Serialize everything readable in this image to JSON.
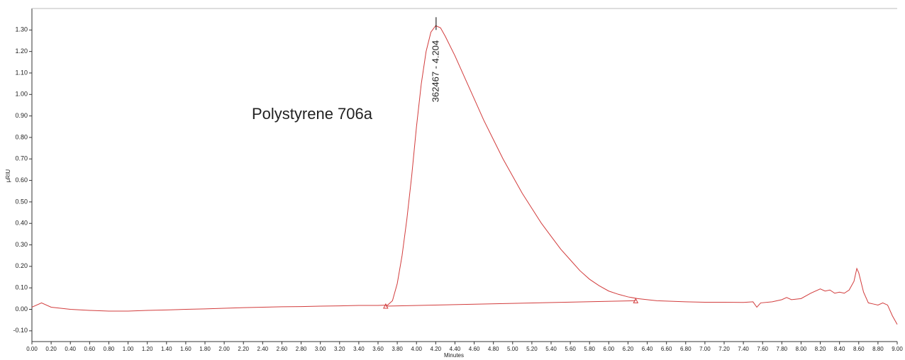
{
  "chart_data": {
    "type": "line",
    "x_label": "Minutes",
    "y_label": "µRIU",
    "annotation": "Polystyrene 706a",
    "peak": {
      "label": "362467 - 4.204",
      "x": 4.204,
      "y": 1.32
    },
    "baseline": {
      "x": [
        3.68,
        6.28
      ],
      "y": [
        0.015,
        0.04
      ]
    },
    "series": [
      {
        "color": "#d23c3c",
        "x": [
          0.0,
          0.1,
          0.2,
          0.4,
          0.6,
          0.8,
          1.0,
          1.2,
          1.4,
          1.6,
          1.8,
          2.0,
          2.2,
          2.4,
          2.6,
          2.8,
          3.0,
          3.2,
          3.4,
          3.6,
          3.7,
          3.75,
          3.8,
          3.85,
          3.9,
          3.95,
          4.0,
          4.05,
          4.1,
          4.15,
          4.2,
          4.25,
          4.3,
          4.4,
          4.5,
          4.6,
          4.7,
          4.8,
          4.9,
          5.0,
          5.1,
          5.2,
          5.3,
          5.4,
          5.5,
          5.6,
          5.7,
          5.8,
          5.9,
          6.0,
          6.1,
          6.2,
          6.3,
          6.5,
          6.8,
          7.0,
          7.2,
          7.4,
          7.5,
          7.54,
          7.58,
          7.7,
          7.8,
          7.85,
          7.9,
          8.0,
          8.1,
          8.2,
          8.25,
          8.3,
          8.35,
          8.4,
          8.45,
          8.5,
          8.55,
          8.58,
          8.6,
          8.65,
          8.7,
          8.75,
          8.8,
          8.85,
          8.9,
          8.95,
          9.0
        ],
        "values": [
          0.01,
          0.03,
          0.01,
          0.0,
          -0.005,
          -0.008,
          -0.008,
          -0.005,
          -0.003,
          0.0,
          0.002,
          0.005,
          0.008,
          0.01,
          0.012,
          0.013,
          0.015,
          0.016,
          0.018,
          0.018,
          0.02,
          0.04,
          0.12,
          0.25,
          0.42,
          0.62,
          0.85,
          1.05,
          1.2,
          1.29,
          1.32,
          1.31,
          1.27,
          1.18,
          1.08,
          0.98,
          0.88,
          0.79,
          0.7,
          0.62,
          0.54,
          0.47,
          0.4,
          0.34,
          0.28,
          0.23,
          0.18,
          0.14,
          0.11,
          0.085,
          0.07,
          0.058,
          0.05,
          0.04,
          0.035,
          0.033,
          0.033,
          0.032,
          0.035,
          0.01,
          0.03,
          0.035,
          0.045,
          0.055,
          0.045,
          0.05,
          0.075,
          0.095,
          0.085,
          0.09,
          0.075,
          0.08,
          0.075,
          0.09,
          0.13,
          0.19,
          0.17,
          0.08,
          0.03,
          0.025,
          0.02,
          0.03,
          0.02,
          -0.03,
          -0.07
        ]
      }
    ],
    "xlim": [
      0,
      9
    ],
    "ylim": [
      -0.15,
      1.4
    ],
    "yticks": [
      {
        "value": -0.1,
        "label": "-0.10"
      },
      {
        "value": 0,
        "label": "0.00"
      },
      {
        "value": 0.1,
        "label": "0.10"
      },
      {
        "value": 0.2,
        "label": "0.20"
      },
      {
        "value": 0.3,
        "label": "0.30"
      },
      {
        "value": 0.4,
        "label": "0.40"
      },
      {
        "value": 0.5,
        "label": "0.50"
      },
      {
        "value": 0.6,
        "label": "0.60"
      },
      {
        "value": 0.7,
        "label": "0.70"
      },
      {
        "value": 0.8,
        "label": "0.80"
      },
      {
        "value": 0.9,
        "label": "0.90"
      },
      {
        "value": 1.0,
        "label": "1.00"
      },
      {
        "value": 1.1,
        "label": "1.10"
      },
      {
        "value": 1.2,
        "label": "1.20"
      },
      {
        "value": 1.3,
        "label": "1.30"
      }
    ],
    "xticks": [
      {
        "value": 0,
        "label": "0.00"
      },
      {
        "value": 0.2,
        "label": "0.20"
      },
      {
        "value": 0.4,
        "label": "0.40"
      },
      {
        "value": 0.6,
        "label": "0.60"
      },
      {
        "value": 0.8,
        "label": "0.80"
      },
      {
        "value": 1.0,
        "label": "1.00"
      },
      {
        "value": 1.2,
        "label": "1.20"
      },
      {
        "value": 1.4,
        "label": "1.40"
      },
      {
        "value": 1.6,
        "label": "1.60"
      },
      {
        "value": 1.8,
        "label": "1.80"
      },
      {
        "value": 2.0,
        "label": "2.00"
      },
      {
        "value": 2.2,
        "label": "2.20"
      },
      {
        "value": 2.4,
        "label": "2.40"
      },
      {
        "value": 2.6,
        "label": "2.60"
      },
      {
        "value": 2.8,
        "label": "2.80"
      },
      {
        "value": 3.0,
        "label": "3.00"
      },
      {
        "value": 3.2,
        "label": "3.20"
      },
      {
        "value": 3.4,
        "label": "3.40"
      },
      {
        "value": 3.6,
        "label": "3.60"
      },
      {
        "value": 3.8,
        "label": "3.80"
      },
      {
        "value": 4.0,
        "label": "4.00"
      },
      {
        "value": 4.2,
        "label": "4.20"
      },
      {
        "value": 4.4,
        "label": "4.40"
      },
      {
        "value": 4.6,
        "label": "4.60"
      },
      {
        "value": 4.8,
        "label": "4.80"
      },
      {
        "value": 5.0,
        "label": "5.00"
      },
      {
        "value": 5.2,
        "label": "5.20"
      },
      {
        "value": 5.4,
        "label": "5.40"
      },
      {
        "value": 5.6,
        "label": "5.60"
      },
      {
        "value": 5.8,
        "label": "5.80"
      },
      {
        "value": 6.0,
        "label": "6.00"
      },
      {
        "value": 6.2,
        "label": "6.20"
      },
      {
        "value": 6.4,
        "label": "6.40"
      },
      {
        "value": 6.6,
        "label": "6.60"
      },
      {
        "value": 6.8,
        "label": "6.80"
      },
      {
        "value": 7.0,
        "label": "7.00"
      },
      {
        "value": 7.2,
        "label": "7.20"
      },
      {
        "value": 7.4,
        "label": "7.40"
      },
      {
        "value": 7.6,
        "label": "7.60"
      },
      {
        "value": 7.8,
        "label": "7.80"
      },
      {
        "value": 8.0,
        "label": "8.00"
      },
      {
        "value": 8.2,
        "label": "8.20"
      },
      {
        "value": 8.4,
        "label": "8.40"
      },
      {
        "value": 8.6,
        "label": "8.60"
      },
      {
        "value": 8.8,
        "label": "8.80"
      },
      {
        "value": 9.0,
        "label": "9.00"
      }
    ]
  }
}
